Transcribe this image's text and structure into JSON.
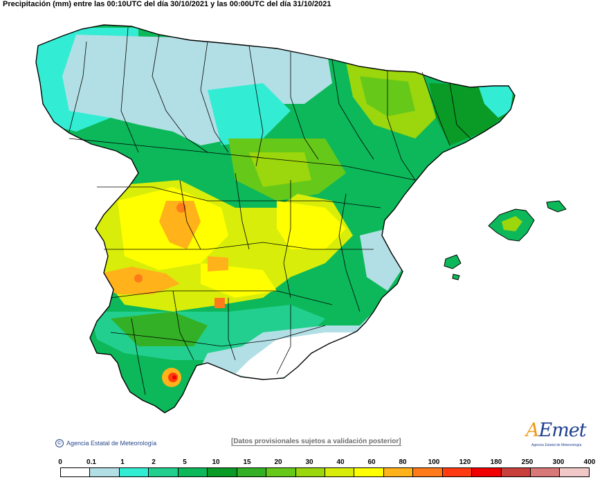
{
  "header": {
    "title": "Precipitación (mm) entre las 00:10UTC del día 30/10/2021 y las 00:00UTC del día 31/10/2021"
  },
  "footer": {
    "copyright": "Agencia Estatal de Meteorología",
    "copyright_icon": "copyright-icon",
    "disclaimer": "[Datos provisionales sujetos a validación posterior]",
    "logo_word_a": "A",
    "logo_word_rest": "Emet",
    "logo_sub": "Agencia Estatal de Meteorología"
  },
  "legend": {
    "labels": [
      "0",
      "0.1",
      "1",
      "2",
      "5",
      "10",
      "15",
      "20",
      "30",
      "40",
      "60",
      "80",
      "100",
      "120",
      "180",
      "250",
      "300",
      "400"
    ],
    "colors": [
      "#ffffff",
      "#b2dfe5",
      "#33ecd4",
      "#22cf8e",
      "#0cb85a",
      "#0a9a26",
      "#33b025",
      "#66c91a",
      "#9cd60c",
      "#d8ee0a",
      "#ffff00",
      "#ffb21a",
      "#ff7a1a",
      "#ff3a10",
      "#f00000",
      "#c8403c",
      "#d87878",
      "#f0c8c8"
    ]
  },
  "map": {
    "sea_color": "#ffffff",
    "border_color": "#000000",
    "dominant_colors": {
      "north": "#b2dfe5",
      "northwest": "#33ecd4",
      "center": "#0cb85a",
      "west": "#d8ee0a",
      "west_core": "#ffb21a",
      "southeast": "#ffffff",
      "south_peak": "#f00000"
    }
  }
}
